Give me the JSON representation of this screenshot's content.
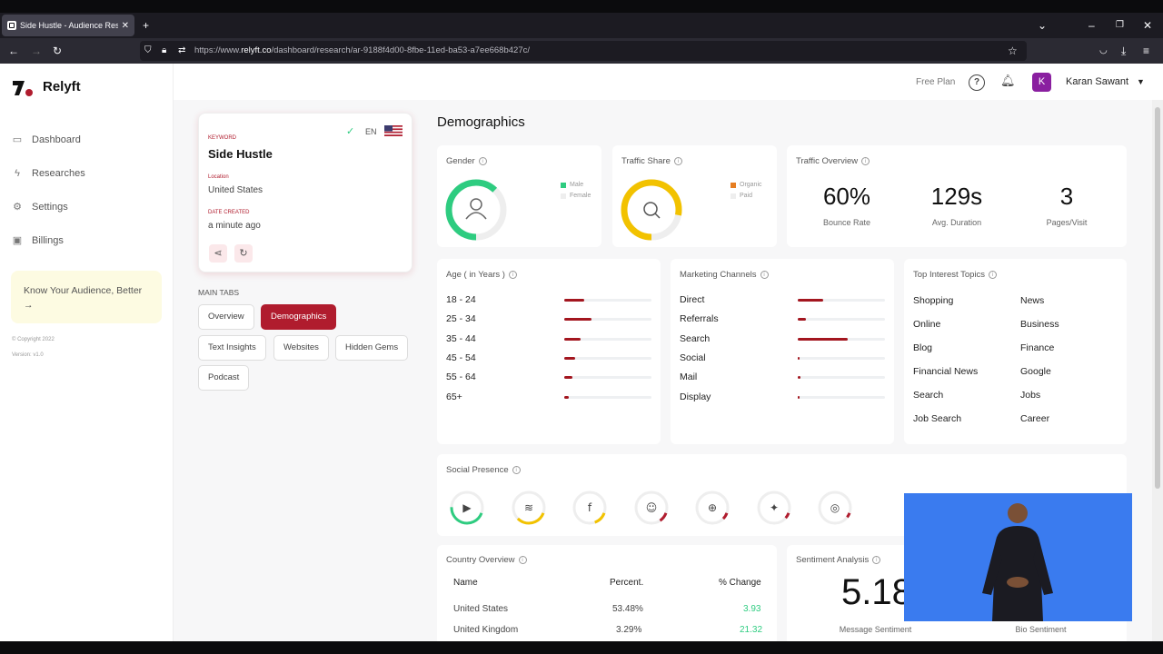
{
  "browser": {
    "tab_title": "Side Hustle - Audience Researc",
    "url_prefix": "https://www.",
    "url_domain": "relyft.co",
    "url_path": "/dashboard/research/ar-9188f4d00-8fbe-11ed-ba53-a7ee668b427c/"
  },
  "brand": {
    "name": "Relyft",
    "color": "#b01c2e"
  },
  "sidebar": {
    "items": [
      {
        "label": "Dashboard",
        "icon": "folder-icon"
      },
      {
        "label": "Researches",
        "icon": "bolt-icon"
      },
      {
        "label": "Settings",
        "icon": "gear-icon"
      },
      {
        "label": "Billings",
        "icon": "wallet-icon"
      }
    ],
    "promo_text": "Know Your Audience, Better",
    "promo_arrow": "→",
    "copyright": "© Copyright 2022",
    "version": "Version: v1.0"
  },
  "header": {
    "plan": "Free Plan",
    "help": "?",
    "avatar_letter": "K",
    "user_name": "Karan Sawant"
  },
  "keyword_card": {
    "keyword_label": "KEYWORD",
    "keyword": "Side Hustle",
    "lang": "EN",
    "location_label": "Location",
    "location": "United States",
    "date_label": "DATE CREATED",
    "date": "a minute ago"
  },
  "tabs": {
    "heading": "MAIN TABS",
    "items": [
      "Overview",
      "Demographics",
      "Text Insights",
      "Websites",
      "Hidden Gems",
      "Podcast"
    ],
    "active": "Demographics"
  },
  "page_title": "Demographics",
  "gender": {
    "title": "Gender",
    "legend": [
      "Male",
      "Female"
    ],
    "male_share": 0.62,
    "colors": [
      "#2ecc80",
      "#eeeeee"
    ]
  },
  "traffic_share": {
    "title": "Traffic Share",
    "legend": [
      "Organic",
      "Paid"
    ],
    "organic_share": 0.78,
    "colors": [
      "#f2c200",
      "#eeeeee"
    ],
    "legend_colors": [
      "#e67e22",
      "#eeeeee"
    ]
  },
  "traffic_overview": {
    "title": "Traffic Overview",
    "stats": [
      {
        "value": "60%",
        "label": "Bounce Rate"
      },
      {
        "value": "129s",
        "label": "Avg. Duration"
      },
      {
        "value": "3",
        "label": "Pages/Visit"
      }
    ]
  },
  "age": {
    "title": "Age ( in Years )",
    "rows": [
      {
        "label": "18 - 24",
        "share": 0.23
      },
      {
        "label": "25 - 34",
        "share": 0.31
      },
      {
        "label": "35 - 44",
        "share": 0.19
      },
      {
        "label": "45 - 54",
        "share": 0.13
      },
      {
        "label": "55 - 64",
        "share": 0.09
      },
      {
        "label": "65+",
        "share": 0.05
      }
    ]
  },
  "marketing": {
    "title": "Marketing Channels",
    "rows": [
      {
        "label": "Direct",
        "share": 0.29
      },
      {
        "label": "Referrals",
        "share": 0.09
      },
      {
        "label": "Search",
        "share": 0.57
      },
      {
        "label": "Social",
        "share": 0.02
      },
      {
        "label": "Mail",
        "share": 0.03
      },
      {
        "label": "Display",
        "share": 0.02
      }
    ]
  },
  "topics": {
    "title": "Top Interest Topics",
    "items": [
      "Shopping",
      "News",
      "Online",
      "Business",
      "Blog",
      "Finance",
      "Financial News",
      "Google",
      "Search",
      "Jobs",
      "Job Search",
      "Career"
    ]
  },
  "social": {
    "title": "Social Presence",
    "items": [
      {
        "icon": "youtube-icon",
        "share": 0.45,
        "color": "#2ecc80"
      },
      {
        "icon": "stackoverflow-icon",
        "share": 0.32,
        "color": "#f2c200"
      },
      {
        "icon": "facebook-icon",
        "share": 0.14,
        "color": "#f2c200"
      },
      {
        "icon": "reddit-icon",
        "share": 0.1,
        "color": "#b01c2e"
      },
      {
        "icon": "web-icon",
        "share": 0.07,
        "color": "#b01c2e"
      },
      {
        "icon": "twitter-icon",
        "share": 0.06,
        "color": "#b01c2e"
      },
      {
        "icon": "instagram-icon",
        "share": 0.05,
        "color": "#b01c2e"
      }
    ]
  },
  "country": {
    "title": "Country Overview",
    "headers": [
      "Name",
      "Percent.",
      "% Change"
    ],
    "rows": [
      {
        "name": "United States",
        "percent": "53.48%",
        "change": "3.93"
      },
      {
        "name": "United Kingdom",
        "percent": "3.29%",
        "change": "21.32"
      }
    ]
  },
  "sentiment": {
    "title": "Sentiment Analysis",
    "value": "5.18",
    "labels": [
      "Message Sentiment",
      "Bio Sentiment"
    ]
  },
  "colors": {
    "accent": "#b01c2e",
    "positive": "#2ecc80",
    "bar": "#a3161f"
  }
}
